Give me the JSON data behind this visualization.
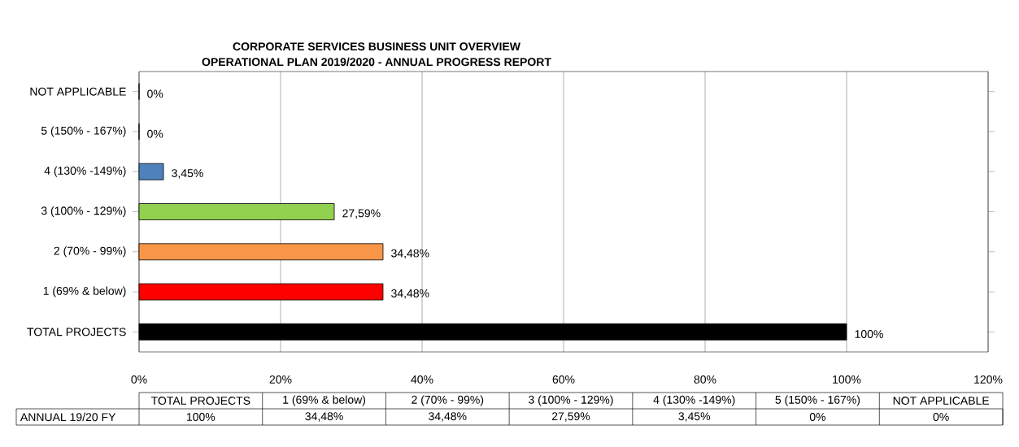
{
  "chart_data": {
    "type": "bar",
    "orientation": "horizontal",
    "title": "CORPORATE SERVICES BUSINESS UNIT OVERVIEW",
    "subtitle": "OPERATIONAL PLAN 2019/2020 - ANNUAL PROGRESS REPORT",
    "categories": [
      "NOT APPLICABLE",
      "5 (150% - 167%)",
      "4 (130% -149%)",
      "3 (100% - 129%)",
      "2 (70% - 99%)",
      "1 (69% & below)",
      "TOTAL PROJECTS"
    ],
    "values": [
      0,
      0,
      3.45,
      27.59,
      34.48,
      34.48,
      100
    ],
    "value_labels": [
      "0%",
      "0%",
      "3,45%",
      "27,59%",
      "34,48%",
      "34,48%",
      "100%"
    ],
    "colors": [
      null,
      null,
      "#4f81bd",
      "#92d050",
      "#f79646",
      "#ff0000",
      "#000000"
    ],
    "xlim": [
      0,
      120
    ],
    "xticks": [
      {
        "value": 0,
        "label": "0%"
      },
      {
        "value": 20,
        "label": "20%"
      },
      {
        "value": 40,
        "label": "40%"
      },
      {
        "value": 60,
        "label": "60%"
      },
      {
        "value": 80,
        "label": "80%"
      },
      {
        "value": 100,
        "label": "100%"
      },
      {
        "value": 120,
        "label": "120%"
      }
    ],
    "grid": "x",
    "annotations": [
      "ANNUAL 19/20 FY"
    ]
  }
}
